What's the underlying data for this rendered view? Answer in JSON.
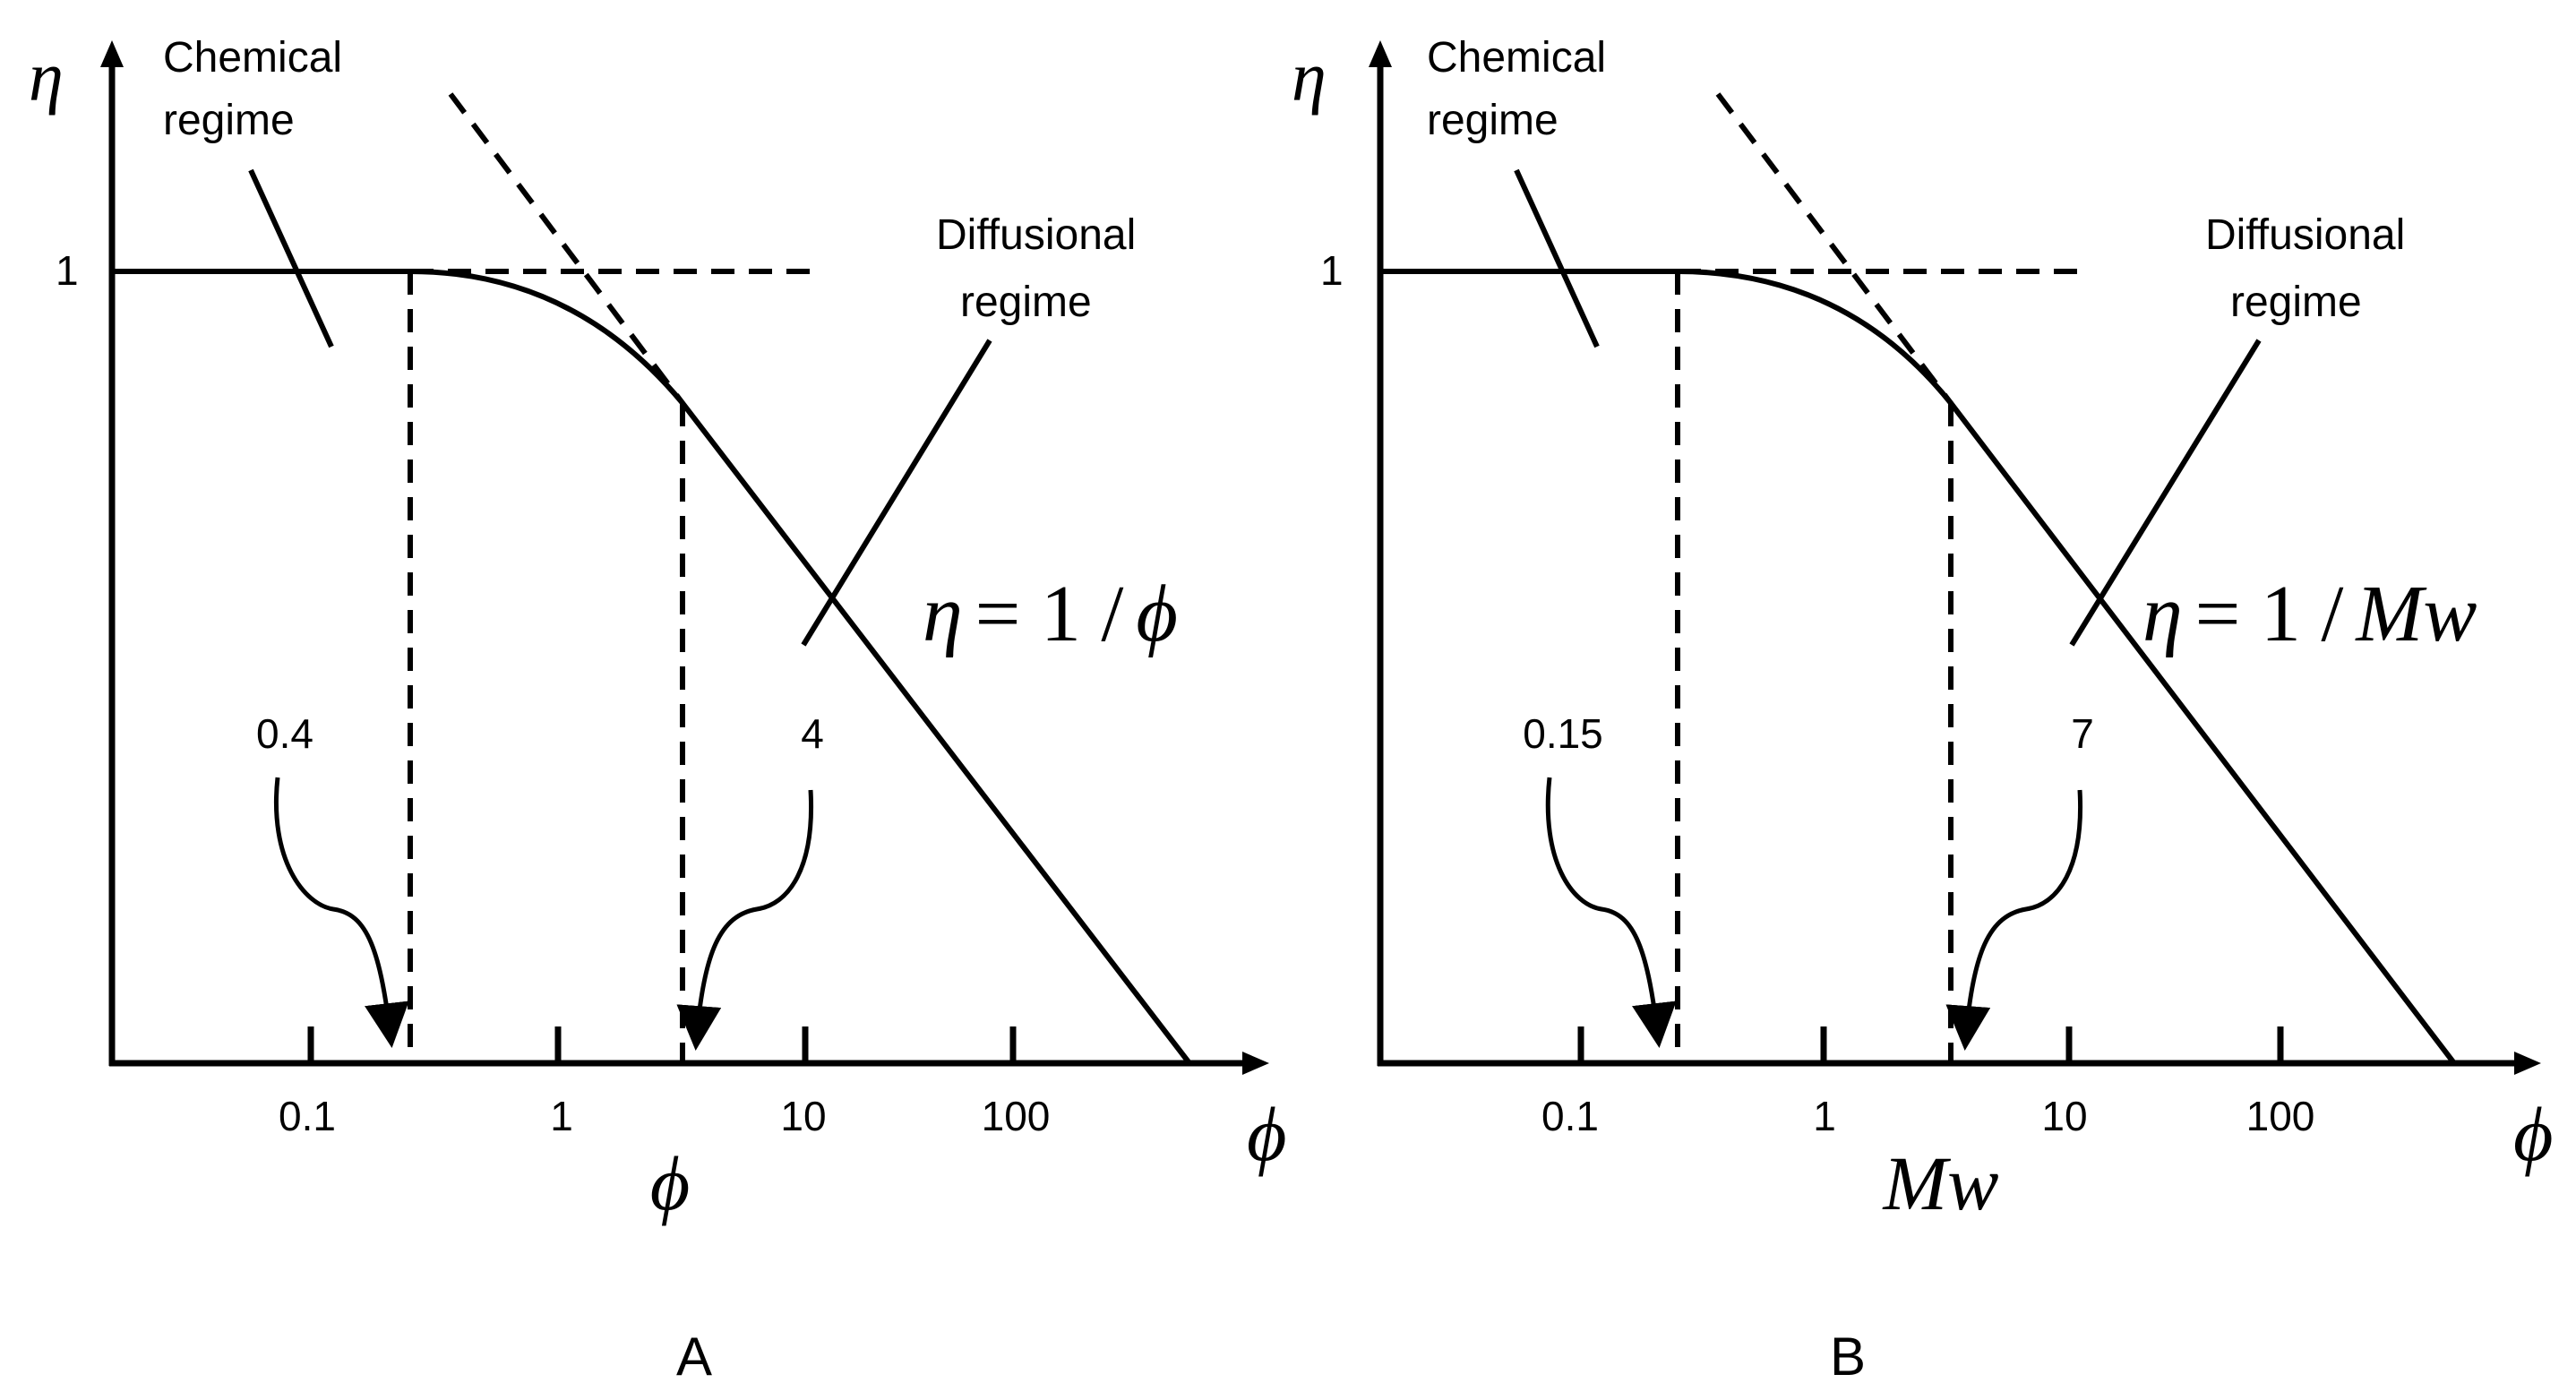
{
  "panels": [
    {
      "id": "A",
      "panel_label": "A",
      "y_axis_symbol": "η",
      "x_axis_symbol": "ϕ",
      "x_axis_name": "ϕ",
      "y_tick_label": "1",
      "x_tick_labels": [
        "0.1",
        "1",
        "10",
        "100"
      ],
      "chemical_label_line1": "Chemical",
      "chemical_label_line2": "regime",
      "diffusional_label_line1": "Diffusional",
      "diffusional_label_line2": "regime",
      "equation_lhs": "η",
      "equation_eq": "= 1 /",
      "equation_rhs": "ϕ",
      "lower_transition_value": "0.4",
      "upper_transition_value": "4"
    },
    {
      "id": "B",
      "panel_label": "B",
      "y_axis_symbol": "η",
      "x_axis_symbol": "ϕ",
      "x_axis_name": "Mw",
      "y_tick_label": "1",
      "x_tick_labels": [
        "0.1",
        "1",
        "10",
        "100"
      ],
      "chemical_label_line1": "Chemical",
      "chemical_label_line2": "regime",
      "diffusional_label_line1": "Diffusional",
      "diffusional_label_line2": "regime",
      "equation_lhs": "η",
      "equation_eq": "= 1 /",
      "equation_rhs": "Mw",
      "lower_transition_value": "0.15",
      "upper_transition_value": "7"
    }
  ]
}
